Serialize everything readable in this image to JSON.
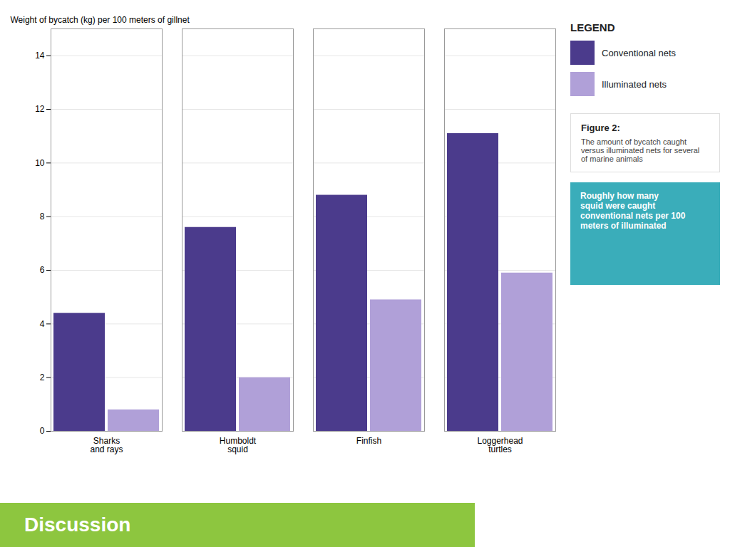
{
  "chart_data": {
    "type": "bar",
    "categories": [
      "Sharks\nand rays",
      "Humboldt\nsquid",
      "Finfish",
      "Loggerhead\nturtles"
    ],
    "series": [
      {
        "name": "Conventional nets",
        "color": "#4B3B8C",
        "values": [
          4.4,
          7.6,
          8.8,
          11.1
        ]
      },
      {
        "name": "Illuminated nets",
        "color": "#B0A0D8",
        "values": [
          0.8,
          2.0,
          4.9,
          5.9
        ]
      }
    ],
    "ylabel": "Weight of bycatch (kg) per 100 meters of gillnet",
    "ylim": [
      0,
      15
    ],
    "yticks": [
      0,
      2,
      4,
      6,
      8,
      10,
      12,
      14
    ],
    "grid": true,
    "legend": "upper right",
    "legend_title": "LEGEND",
    "annotations": [
      {
        "title": "Figure 2:",
        "text": "The amount of bycatch caught\nversus illuminated nets for several\nof marine animals",
        "color": "#FFFFFF"
      },
      {
        "text": "Roughly how many\nsquid were caught\nconventional nets per 100\nmeters of illuminated",
        "color": "#3AADBA"
      },
      {
        "text": "Discussion",
        "color": "#8DC63F"
      }
    ]
  }
}
